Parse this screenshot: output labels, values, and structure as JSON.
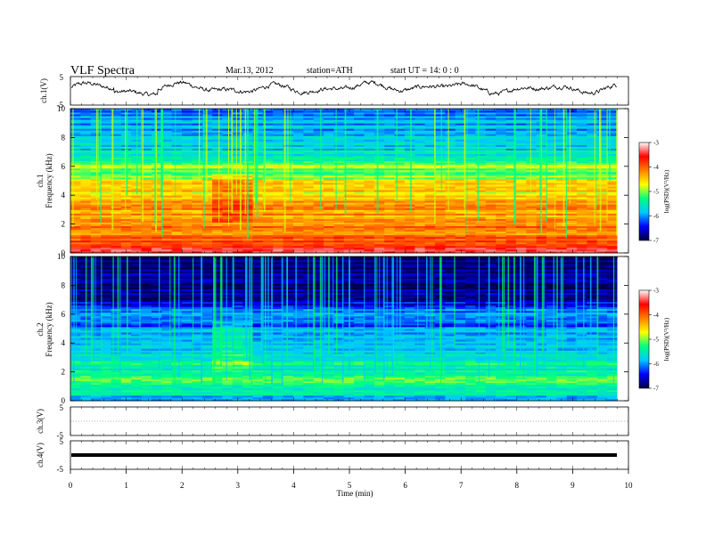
{
  "header": {
    "title": "VLF  Spectra",
    "date": "Mar.13, 2012",
    "station": "station=ATH",
    "start": "start  UT  =   14: 0  : 0"
  },
  "colors": {
    "waveform": "#000000",
    "colormap": [
      "#000040",
      "#0000ff",
      "#00c8ff",
      "#00ff80",
      "#ffff00",
      "#ff8000",
      "#ff0000",
      "#ffffff"
    ]
  },
  "chart_data": [
    {
      "type": "line",
      "panel": "ch1-waveform",
      "ylabel": "ch.1(V)",
      "ylim": [
        -5,
        5
      ],
      "yticks": [
        "5",
        "-5"
      ],
      "xlim": [
        0,
        10
      ],
      "description_values": [
        0,
        1,
        -1,
        1.5,
        -0.5,
        1.2,
        -1.2,
        0.8,
        -0.8,
        1.4,
        -1,
        0.6
      ]
    },
    {
      "type": "heatmap",
      "panel": "ch1-spectrogram",
      "ylabel": "ch.1\nFrequency  (kHz)",
      "ylim": [
        0,
        10
      ],
      "yticks": [
        "10",
        "8",
        "6",
        "4",
        "2",
        "0"
      ],
      "xlim": [
        0,
        9.8
      ],
      "colorbar": {
        "label": "log(PSD)(V²/Hz)",
        "range": [
          -7,
          -3
        ],
        "ticks": [
          "-3",
          "-4",
          "-5",
          "-6",
          "-7"
        ]
      },
      "band_profile": [
        [
          0,
          -3.2
        ],
        [
          0.5,
          -3.6
        ],
        [
          1,
          -4.0
        ],
        [
          1.5,
          -4.3
        ],
        [
          2,
          -4.1
        ],
        [
          2.5,
          -4.4
        ],
        [
          3,
          -4.2
        ],
        [
          3.5,
          -4.4
        ],
        [
          4,
          -4.6
        ],
        [
          4.5,
          -4.5
        ],
        [
          5,
          -4.7
        ],
        [
          5.5,
          -5.3
        ],
        [
          6,
          -4.9
        ],
        [
          6.5,
          -5.5
        ],
        [
          7,
          -5.6
        ],
        [
          7.5,
          -5.8
        ],
        [
          8,
          -5.8
        ],
        [
          8.5,
          -5.9
        ],
        [
          9,
          -6.0
        ],
        [
          9.5,
          -6.0
        ],
        [
          10,
          -6.1
        ]
      ]
    },
    {
      "type": "heatmap",
      "panel": "ch2-spectrogram",
      "ylabel": "ch.2\nFrequency  (kHz)",
      "ylim": [
        0,
        10
      ],
      "yticks": [
        "10",
        "8",
        "6",
        "4",
        "2",
        "0"
      ],
      "xlim": [
        0,
        9.8
      ],
      "colorbar": {
        "label": "log(PSD)(V²/Hz)",
        "range": [
          -7,
          -3
        ],
        "ticks": [
          "-3",
          "-4",
          "-5",
          "-6",
          "-7"
        ]
      },
      "band_profile": [
        [
          0,
          -6.0
        ],
        [
          0.5,
          -5.6
        ],
        [
          1,
          -5.4
        ],
        [
          1.5,
          -5.3
        ],
        [
          2,
          -5.5
        ],
        [
          2.5,
          -5.4
        ],
        [
          3,
          -5.6
        ],
        [
          3.5,
          -5.7
        ],
        [
          4,
          -6.0
        ],
        [
          4.5,
          -5.8
        ],
        [
          5,
          -6.1
        ],
        [
          5.5,
          -6.2
        ],
        [
          6,
          -6.0
        ],
        [
          6.5,
          -6.3
        ],
        [
          7,
          -6.7
        ],
        [
          7.5,
          -6.7
        ],
        [
          8,
          -6.8
        ],
        [
          8.5,
          -6.8
        ],
        [
          9,
          -6.8
        ],
        [
          9.5,
          -6.9
        ],
        [
          10,
          -6.9
        ]
      ]
    },
    {
      "type": "line",
      "panel": "ch3-waveform",
      "ylabel": "ch.3(V)",
      "ylim": [
        -5,
        5
      ],
      "yticks": [
        "5",
        "-5"
      ],
      "xlim": [
        0,
        10
      ],
      "values": []
    },
    {
      "type": "line",
      "panel": "ch4-waveform",
      "ylabel": "ch.4(V)",
      "ylim": [
        -5,
        5
      ],
      "yticks": [
        "5",
        "-5"
      ],
      "xlim": [
        0,
        10
      ],
      "constant_value": 0
    }
  ],
  "x_axis": {
    "label": "Time  (min)",
    "ticks": [
      "0",
      "1",
      "2",
      "3",
      "4",
      "5",
      "6",
      "7",
      "8",
      "9",
      "10"
    ]
  }
}
